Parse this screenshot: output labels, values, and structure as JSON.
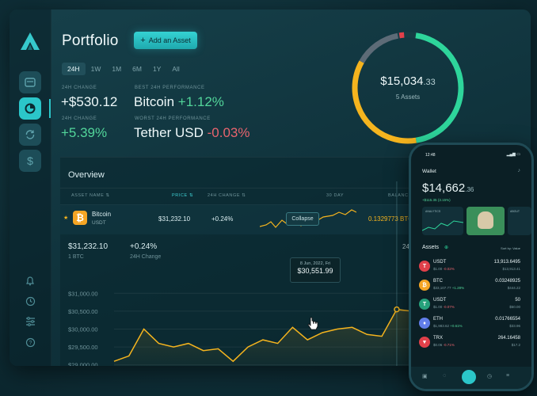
{
  "header": {
    "title": "Portfolio",
    "add_button": "Add an Asset"
  },
  "tabs": [
    "24H",
    "1W",
    "1M",
    "6M",
    "1Y",
    "All"
  ],
  "stats": {
    "change_label": "24H CHANGE",
    "change_value": "+$530.12",
    "change_pct_label": "24H CHANGE",
    "change_pct": "+5.39%",
    "best_label": "BEST 24H PERFORMANCE",
    "best_name": "Bitcoin",
    "best_pct": "+1.12%",
    "worst_label": "WORST 24H PERFORMANCE",
    "worst_name": "Tether USD",
    "worst_pct": "-0.03%"
  },
  "donut": {
    "amount": "$15,034",
    "cents": ".33",
    "subtitle": "5 Assets",
    "colors": {
      "green": "#2ed59b",
      "yellow": "#f5b41e",
      "gray": "#5d6b77",
      "red": "#e0404a"
    }
  },
  "overview": {
    "title": "Overview",
    "columns": [
      "ASSET NAME",
      "PRICE",
      "24H CHANGE",
      "30 DAY",
      "BALANC"
    ],
    "row": {
      "name": "Bitcoin",
      "ticker": "USDT",
      "price": "$31,232.10",
      "change": "+0.24%",
      "balance": "0.1329773 BTC",
      "collapse": "Collapse"
    },
    "detail": {
      "price": "$31,232.10",
      "price_sub": "1 BTC",
      "change": "+0.24%",
      "change_sub": "24H Change",
      "right_label": "24"
    },
    "tooltip": {
      "date": "8 Jun, 2022, Fri",
      "value": "$30,551.99"
    }
  },
  "chart_data": {
    "type": "area",
    "y_ticks": [
      "$31,000.00",
      "$30,500.00",
      "$30,000.00",
      "$29,500.00",
      "$29,000.00"
    ],
    "ylim": [
      28950,
      31250
    ],
    "values": [
      29100,
      29250,
      30000,
      29600,
      29500,
      29600,
      29400,
      29450,
      29100,
      29500,
      29700,
      29600,
      30050,
      29700,
      29900,
      30000,
      30050,
      29850,
      29800,
      30550,
      30500,
      30500,
      30700,
      30800,
      30850,
      31050,
      31150,
      31200,
      31180
    ],
    "highlight_index": 19,
    "line_color": "#f5b41e",
    "grid": true
  },
  "phone": {
    "time": "12:48",
    "title": "Wallet",
    "balance": "$14,662",
    "balance_cents": ".36",
    "change": "+$115.35",
    "change_pct": "(3.15%)",
    "card_left": "ANALYTICS",
    "card_right": "ABOUT",
    "assets_title": "Assets",
    "sort_label": "Sort by: Value",
    "assets": [
      {
        "name": "USDT",
        "sub_price": "$1.00",
        "sub_change": "-0.02%",
        "amount": "13,913.6495",
        "value": "$13,913.41",
        "color": "#e0404a",
        "symbol": "T",
        "icon": "tether-icon"
      },
      {
        "name": "BTC",
        "sub_price": "$33,107.77",
        "sub_change": "+1.28%",
        "amount": "0.03248925",
        "value": "$444.22",
        "color": "#f5a524",
        "symbol": "₿",
        "icon": "bitcoin-icon"
      },
      {
        "name": "USDT",
        "sub_price": "$1.00",
        "sub_change": "-0.07%",
        "amount": "50",
        "value": "$50.00",
        "color": "#26a17b",
        "symbol": "T",
        "icon": "tether-icon"
      },
      {
        "name": "ETH",
        "sub_price": "$1,983.62",
        "sub_change": "+0.61%",
        "amount": "0.01766554",
        "value": "$33.96",
        "color": "#627eea",
        "symbol": "♦",
        "icon": "ethereum-icon"
      },
      {
        "name": "TRX",
        "sub_price": "$0.06",
        "sub_change": "-0.71%",
        "amount": "264.16458",
        "value": "$17.2",
        "color": "#e0404a",
        "symbol": "▼",
        "icon": "tron-icon"
      }
    ]
  }
}
